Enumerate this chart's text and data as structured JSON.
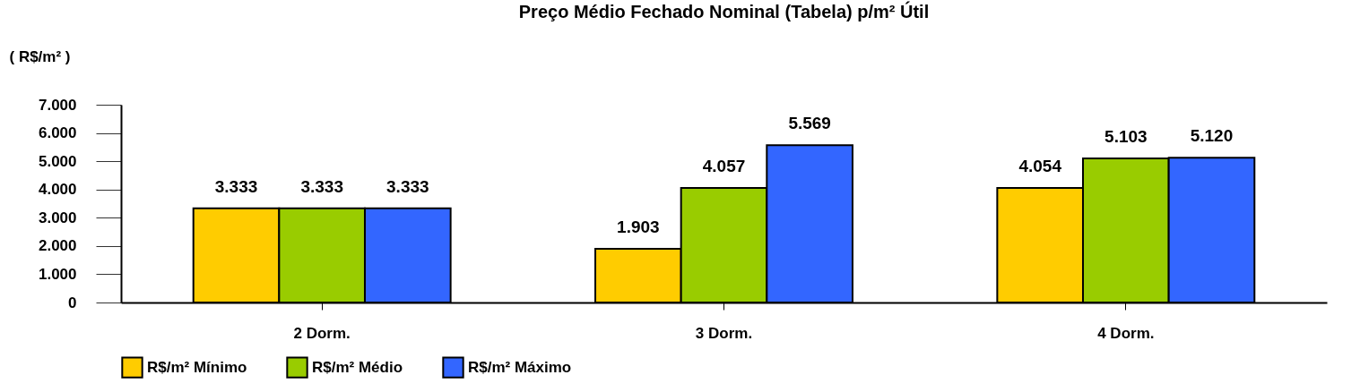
{
  "chart_data": {
    "type": "bar",
    "title": "Preço Médio Fechado Nominal (Tabela) p/m² Útil",
    "ylabel": "( R$/m² )",
    "categories": [
      "2 Dorm.",
      "3 Dorm.",
      "4 Dorm."
    ],
    "series": [
      {
        "name": "R$/m² Mínimo",
        "color": "#ffcc00",
        "values": [
          3333,
          1903,
          4054
        ],
        "value_labels": [
          "3.333",
          "1.903",
          "4.054"
        ]
      },
      {
        "name": "R$/m² Médio",
        "color": "#99cc00",
        "values": [
          3333,
          4057,
          5103
        ],
        "value_labels": [
          "3.333",
          "4.057",
          "5.103"
        ]
      },
      {
        "name": "R$/m² Máximo",
        "color": "#3366ff",
        "values": [
          3333,
          5569,
          5120
        ],
        "value_labels": [
          "3.333",
          "5.569",
          "5.120"
        ]
      }
    ],
    "ylim": [
      0,
      7000
    ],
    "yticks": [
      0,
      {
        "value": 1000,
        "label": "1.000"
      },
      {
        "value": 2000,
        "label": "2.000"
      },
      {
        "value": 3000,
        "label": "3.000"
      },
      {
        "value": 4000,
        "label": "4.000"
      },
      {
        "value": 5000,
        "label": "5.000"
      },
      {
        "value": 6000,
        "label": "6.000"
      },
      {
        "value": 7000,
        "label": "7.000"
      }
    ],
    "grid": false,
    "legend": "bottom"
  }
}
